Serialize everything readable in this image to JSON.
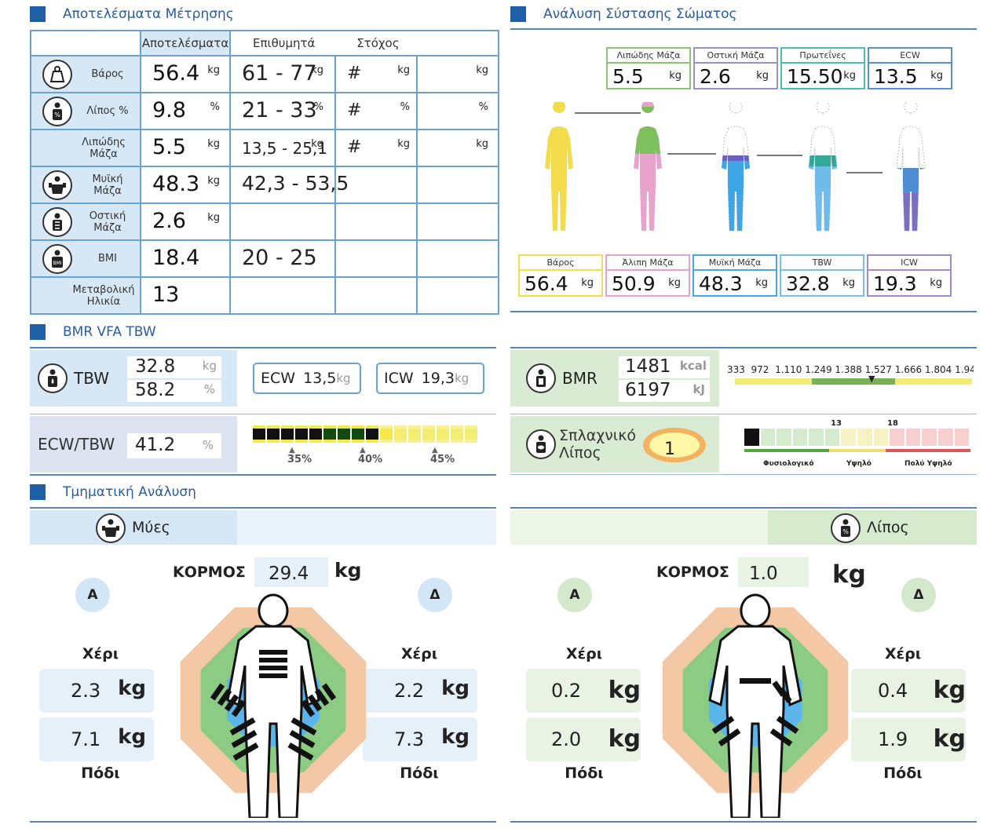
{
  "measure": {
    "title": "Αποτελέσματα Μέτρησης",
    "headers": {
      "results": "Αποτελέσματα",
      "desired": "Επιθυμητά",
      "target": "Στόχος"
    },
    "rows": [
      {
        "label": "Βάρος",
        "value": "56.4",
        "unit": "kg",
        "range": "61 - 77",
        "range_unit": "kg",
        "target": "#",
        "t_unit": "kg",
        "t_unit2": "kg"
      },
      {
        "label": "Λίπος %",
        "value": "9.8",
        "unit": "%",
        "range": "21 - 33",
        "range_unit": "%",
        "target": "#",
        "t_unit": "%",
        "t_unit2": "%"
      },
      {
        "label": "Λιπώδης Μάζα",
        "value": "5.5",
        "unit": "kg",
        "range": "13,5 - 25,1",
        "range_unit": "kg",
        "target": "#",
        "t_unit": "kg",
        "t_unit2": "kg"
      },
      {
        "label": "Μυϊκή Μάζα",
        "value": "48.3",
        "unit": "kg",
        "range": "42,3 - 53,5"
      },
      {
        "label": "Οστική Μάζα",
        "value": "2.6",
        "unit": "kg"
      },
      {
        "label": "BMI",
        "value": "18.4",
        "range": "20 - 25"
      },
      {
        "label": "Μεταβολική Ηλικία",
        "value": "13"
      }
    ]
  },
  "composition": {
    "title": "Ανάλυση Σύστασης Σώματος",
    "top": [
      {
        "label": "Λιπώδης Μάζα",
        "value": "5.5",
        "unit": "kg",
        "color": "#8cc27a"
      },
      {
        "label": "Οστική Μάζα",
        "value": "2.6",
        "unit": "kg",
        "color": "#9a8fc9"
      },
      {
        "label": "Πρωτεΐνες",
        "value": "15.50",
        "unit": "kg",
        "color": "#4dbcb3"
      },
      {
        "label": "ECW",
        "value": "13.5",
        "unit": "kg",
        "color": "#5b8ed0"
      }
    ],
    "bottom": [
      {
        "label": "Βάρος",
        "value": "56.4",
        "unit": "kg",
        "color": "#f0df55"
      },
      {
        "label": "Άλιπη Μάζα",
        "value": "50.9",
        "unit": "kg",
        "color": "#e6a2c8"
      },
      {
        "label": "Μυϊκή Μάζα",
        "value": "48.3",
        "unit": "kg",
        "color": "#49a8e3"
      },
      {
        "label": "TBW",
        "value": "32.8",
        "unit": "kg",
        "color": "#79bde8"
      },
      {
        "label": "ICW",
        "value": "19.3",
        "unit": "kg",
        "color": "#a08ccc"
      }
    ]
  },
  "bmr": {
    "title": "BMR VFA TBW",
    "tbw_label": "TBW",
    "tbw_kg": "32.8",
    "tbw_kg_unit": "kg",
    "tbw_pct": "58.2",
    "tbw_pct_unit": "%",
    "ecw_label": "ECW",
    "ecw_val": "13,5",
    "ecw_unit": "kg",
    "icw_label": "ICW",
    "icw_val": "19,3",
    "icw_unit": "kg",
    "ratio_label": "ECW/TBW",
    "ratio_val": "41.2",
    "ratio_unit": "%",
    "ratio_ticks": [
      "35%",
      "40%",
      "45%"
    ],
    "bmr_label": "BMR",
    "bmr_kcal": "1481",
    "kcal_unit": "kcal",
    "bmr_kj": "6197",
    "kj_unit": "kJ",
    "bmr_scale": "333  972  1.110 1.249 1.388 1.527 1.666 1.804 1.94",
    "visceral_label": "Σπλαχνικό Λίπος",
    "visceral_val": "1",
    "vf_ticks": {
      "a": "13",
      "b": "18"
    },
    "vf_zones": [
      "Φυσιολογικό",
      "Υψηλό",
      "Πολύ Υψηλό"
    ]
  },
  "segmental": {
    "title": "Τμηματική Ανάλυση",
    "muscle": {
      "header": "Μύες",
      "trunk_label": "ΚΟΡΜΟΣ",
      "trunk": "29.4",
      "unit": "kg",
      "left": "Α",
      "right": "Δ",
      "arm_label": "Χέρι",
      "leg_label": "Πόδι",
      "l_arm": "2.3",
      "l_leg": "7.1",
      "r_arm": "2.2",
      "r_leg": "7.3"
    },
    "fat": {
      "header": "Λίπος",
      "trunk_label": "ΚΟΡΜΟΣ",
      "trunk": "1.0",
      "unit": "kg",
      "left": "Α",
      "right": "Δ",
      "arm_label": "Χέρι",
      "leg_label": "Πόδι",
      "l_arm": "0.2",
      "l_leg": "2.0",
      "r_arm": "0.4",
      "r_leg": "1.9"
    }
  }
}
